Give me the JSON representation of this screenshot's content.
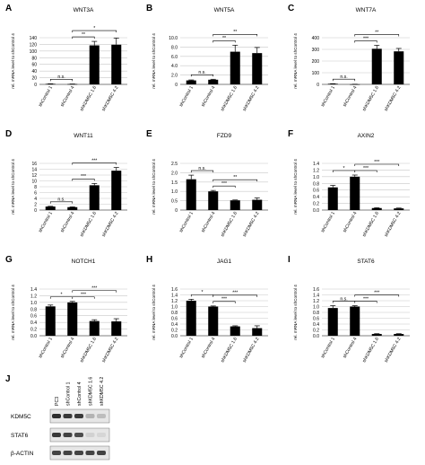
{
  "panels": [
    {
      "letter": "A",
      "title": "WNT3A",
      "ylabel": "rel. mRNA level to shControl 4",
      "ymax": 140,
      "ticks": [
        0,
        20,
        40,
        60,
        80,
        100,
        120,
        140
      ],
      "categories": [
        "shControl 1",
        "shControl 4",
        "shKDM5C 1.6",
        "shKDM5C 4.2"
      ],
      "values": [
        1.5,
        1,
        117,
        119
      ],
      "errors": [
        0.3,
        0.2,
        12,
        20
      ],
      "brackets": [
        {
          "from": 0,
          "to": 1,
          "label": "n.s."
        },
        {
          "from": 1,
          "to": 2,
          "label": "**"
        },
        {
          "from": 1,
          "to": 3,
          "label": "*"
        }
      ]
    },
    {
      "letter": "B",
      "title": "WNT5A",
      "ylabel": "rel. mRNA level to shControl 4",
      "ymax": 10,
      "ticks": [
        0,
        2,
        4,
        6,
        8,
        10
      ],
      "tick_labels": [
        "0",
        "2.0",
        "4.0",
        "6.0",
        "8.0",
        "10.0"
      ],
      "categories": [
        "shControl 1",
        "shControl 4",
        "shKDM5C 1.6",
        "shKDM5C 4.2"
      ],
      "values": [
        0.85,
        1,
        7,
        6.7
      ],
      "errors": [
        0.1,
        0.1,
        1.4,
        1.2
      ],
      "brackets": [
        {
          "from": 0,
          "to": 1,
          "label": "n.s."
        },
        {
          "from": 1,
          "to": 2,
          "label": "**"
        },
        {
          "from": 1,
          "to": 3,
          "label": "**"
        }
      ]
    },
    {
      "letter": "C",
      "title": "WNT7A",
      "ylabel": "rel. mRNA level to shControl 4",
      "ymax": 400,
      "ticks": [
        0,
        100,
        200,
        300,
        400
      ],
      "categories": [
        "shControl 1",
        "shControl 4",
        "shKDM5C 1.6",
        "shKDM5C 4.2"
      ],
      "values": [
        5,
        1,
        305,
        283
      ],
      "errors": [
        1,
        0.5,
        30,
        25
      ],
      "brackets": [
        {
          "from": 0,
          "to": 1,
          "label": "n.s."
        },
        {
          "from": 1,
          "to": 2,
          "label": "***"
        },
        {
          "from": 1,
          "to": 3,
          "label": "**"
        }
      ]
    },
    {
      "letter": "D",
      "title": "WNT11",
      "ylabel": "rel. mRNA level to shControl 4",
      "ymax": 16,
      "ticks": [
        0,
        2,
        4,
        6,
        8,
        10,
        12,
        14,
        16
      ],
      "categories": [
        "shControl 1",
        "shControl 4",
        "shKDM5C 1.6",
        "shKDM5C 4.2"
      ],
      "values": [
        1.2,
        1,
        8.5,
        13.5
      ],
      "errors": [
        0.1,
        0.1,
        0.6,
        1.1
      ],
      "brackets": [
        {
          "from": 0,
          "to": 1,
          "label": "n.s."
        },
        {
          "from": 1,
          "to": 2,
          "label": "***"
        },
        {
          "from": 1,
          "to": 3,
          "label": "***"
        }
      ]
    },
    {
      "letter": "E",
      "title": "FZD9",
      "ylabel": "rel. mRNA level to shControl 4",
      "ymax": 2.5,
      "ticks": [
        0,
        0.5,
        1,
        1.5,
        2,
        2.5
      ],
      "tick_labels": [
        "0",
        "0.5",
        "1.0",
        "1.5",
        "2.0",
        "2.5"
      ],
      "categories": [
        "shControl 1",
        "shControl 4",
        "shKDM5C 1.6",
        "shKDM5C 4.2"
      ],
      "values": [
        1.65,
        1,
        0.52,
        0.55
      ],
      "errors": [
        0.22,
        0.05,
        0.02,
        0.1
      ],
      "brackets": [
        {
          "from": 0,
          "to": 1,
          "label": "n.s."
        },
        {
          "from": 1,
          "to": 2,
          "label": "***"
        },
        {
          "from": 1,
          "to": 3,
          "label": "**"
        }
      ]
    },
    {
      "letter": "F",
      "title": "AXIN2",
      "ylabel": "rel. mRNA level to shControl 4",
      "ymax": 1.4,
      "ticks": [
        0,
        0.2,
        0.4,
        0.6,
        0.8,
        1,
        1.2,
        1.4
      ],
      "tick_labels": [
        "0.0",
        "0.2",
        "0.4",
        "0.6",
        "0.8",
        "1.0",
        "1.2",
        "1.4"
      ],
      "categories": [
        "shControl 1",
        "shControl 4",
        "shKDM5C 1.6",
        "shKDM5C 4.2"
      ],
      "values": [
        0.68,
        1,
        0.06,
        0.05
      ],
      "errors": [
        0.06,
        0.05,
        0.01,
        0.01
      ],
      "brackets": [
        {
          "from": 0,
          "to": 1,
          "label": "*"
        },
        {
          "from": 1,
          "to": 2,
          "label": "***"
        },
        {
          "from": 1,
          "to": 3,
          "label": "***"
        }
      ]
    },
    {
      "letter": "G",
      "title": "NOTCH1",
      "ylabel": "rel. mRNA level to shControl 4",
      "ymax": 1.4,
      "ticks": [
        0,
        0.2,
        0.4,
        0.6,
        0.8,
        1,
        1.2,
        1.4
      ],
      "tick_labels": [
        "0.0",
        "0.2",
        "0.4",
        "0.6",
        "0.8",
        "1.0",
        "1.2",
        "1.4"
      ],
      "categories": [
        "shControl 1",
        "shControl 4",
        "shKDM5C 1.6",
        "shKDM5C 4.2"
      ],
      "values": [
        0.88,
        1,
        0.44,
        0.43
      ],
      "errors": [
        0.04,
        0.03,
        0.04,
        0.08
      ],
      "brackets": [
        {
          "from": 0,
          "to": 1,
          "label": "*"
        },
        {
          "from": 1,
          "to": 2,
          "label": "***"
        },
        {
          "from": 1,
          "to": 3,
          "label": "***"
        }
      ]
    },
    {
      "letter": "H",
      "title": "JAG1",
      "ylabel": "rel. mRNA level to shControl 4",
      "ymax": 1.6,
      "ticks": [
        0,
        0.2,
        0.4,
        0.6,
        0.8,
        1,
        1.2,
        1.4,
        1.6
      ],
      "tick_labels": [
        "0.0",
        "0.2",
        "0.4",
        "0.6",
        "0.8",
        "1.0",
        "1.2",
        "1.4",
        "1.6"
      ],
      "categories": [
        "shControl 1",
        "shControl 4",
        "shKDM5C 1.6",
        "shKDM5C 4.2"
      ],
      "values": [
        1.2,
        1,
        0.32,
        0.26
      ],
      "errors": [
        0.05,
        0.02,
        0.02,
        0.08
      ],
      "brackets": [
        {
          "from": 0,
          "to": 1,
          "label": "*"
        },
        {
          "from": 1,
          "to": 2,
          "label": "***"
        },
        {
          "from": 1,
          "to": 3,
          "label": "***"
        }
      ]
    },
    {
      "letter": "I",
      "title": "STAT6",
      "ylabel": "rel. mRNA level to shControl 4",
      "ymax": 1.6,
      "ticks": [
        0,
        0.2,
        0.4,
        0.6,
        0.8,
        1,
        1.2,
        1.4,
        1.6
      ],
      "tick_labels": [
        "0.0",
        "0.2",
        "0.4",
        "0.6",
        "0.8",
        "1.0",
        "1.2",
        "1.4",
        "1.6"
      ],
      "categories": [
        "shControl 1",
        "shControl 4",
        "shKDM5C 1.6",
        "shKDM5C 4.2"
      ],
      "values": [
        0.95,
        1,
        0.06,
        0.06
      ],
      "errors": [
        0.08,
        0.03,
        0.01,
        0.01
      ],
      "brackets": [
        {
          "from": 0,
          "to": 1,
          "label": "n.s."
        },
        {
          "from": 1,
          "to": 2,
          "label": "***"
        },
        {
          "from": 1,
          "to": 3,
          "label": "***"
        }
      ]
    }
  ],
  "western": {
    "letter": "J",
    "lanes": [
      "PC3",
      "shControl 1",
      "shControl 4",
      "shKDM5C 1.6",
      "shKDM5C 4.2"
    ],
    "blots": [
      {
        "label": "KDM5C",
        "intensity": [
          0.9,
          0.85,
          0.85,
          0.25,
          0.2
        ]
      },
      {
        "label": "STAT6",
        "intensity": [
          0.85,
          0.8,
          0.75,
          0.1,
          0.08
        ]
      },
      {
        "label": "β-ACTIN",
        "intensity": [
          0.8,
          0.8,
          0.8,
          0.8,
          0.8
        ]
      }
    ]
  },
  "colors": {
    "bar": "#000000",
    "gridline": "#c8c8c8",
    "band": "#1a1a1a",
    "blot_bg": "#e6e6e6"
  },
  "chart_data": [
    {
      "type": "bar",
      "title": "WNT3A",
      "categories": [
        "shControl 1",
        "shControl 4",
        "shKDM5C 1.6",
        "shKDM5C 4.2"
      ],
      "values": [
        1.5,
        1,
        117,
        119
      ],
      "errors": [
        0.3,
        0.2,
        12,
        20
      ],
      "ylabel": "rel. mRNA level to shControl 4",
      "ylim": [
        0,
        140
      ],
      "grid": true
    },
    {
      "type": "bar",
      "title": "WNT5A",
      "categories": [
        "shControl 1",
        "shControl 4",
        "shKDM5C 1.6",
        "shKDM5C 4.2"
      ],
      "values": [
        0.85,
        1,
        7,
        6.7
      ],
      "errors": [
        0.1,
        0.1,
        1.4,
        1.2
      ],
      "ylabel": "rel. mRNA level to shControl 4",
      "ylim": [
        0,
        10
      ],
      "grid": true
    },
    {
      "type": "bar",
      "title": "WNT7A",
      "categories": [
        "shControl 1",
        "shControl 4",
        "shKDM5C 1.6",
        "shKDM5C 4.2"
      ],
      "values": [
        5,
        1,
        305,
        283
      ],
      "errors": [
        1,
        0.5,
        30,
        25
      ],
      "ylabel": "rel. mRNA level to shControl 4",
      "ylim": [
        0,
        400
      ],
      "grid": true
    },
    {
      "type": "bar",
      "title": "WNT11",
      "categories": [
        "shControl 1",
        "shControl 4",
        "shKDM5C 1.6",
        "shKDM5C 4.2"
      ],
      "values": [
        1.2,
        1,
        8.5,
        13.5
      ],
      "errors": [
        0.1,
        0.1,
        0.6,
        1.1
      ],
      "ylabel": "rel. mRNA level to shControl 4",
      "ylim": [
        0,
        16
      ],
      "grid": true
    },
    {
      "type": "bar",
      "title": "FZD9",
      "categories": [
        "shControl 1",
        "shControl 4",
        "shKDM5C 1.6",
        "shKDM5C 4.2"
      ],
      "values": [
        1.65,
        1,
        0.52,
        0.55
      ],
      "errors": [
        0.22,
        0.05,
        0.02,
        0.1
      ],
      "ylabel": "rel. mRNA level to shControl 4",
      "ylim": [
        0,
        2.5
      ],
      "grid": true
    },
    {
      "type": "bar",
      "title": "AXIN2",
      "categories": [
        "shControl 1",
        "shControl 4",
        "shKDM5C 1.6",
        "shKDM5C 4.2"
      ],
      "values": [
        0.68,
        1,
        0.06,
        0.05
      ],
      "errors": [
        0.06,
        0.05,
        0.01,
        0.01
      ],
      "ylabel": "rel. mRNA level to shControl 4",
      "ylim": [
        0,
        1.4
      ],
      "grid": true
    },
    {
      "type": "bar",
      "title": "NOTCH1",
      "categories": [
        "shControl 1",
        "shControl 4",
        "shKDM5C 1.6",
        "shKDM5C 4.2"
      ],
      "values": [
        0.88,
        1,
        0.44,
        0.43
      ],
      "errors": [
        0.04,
        0.03,
        0.04,
        0.08
      ],
      "ylabel": "rel. mRNA level to shControl 4",
      "ylim": [
        0,
        1.4
      ],
      "grid": true
    },
    {
      "type": "bar",
      "title": "JAG1",
      "categories": [
        "shControl 1",
        "shControl 4",
        "shKDM5C 1.6",
        "shKDM5C 4.2"
      ],
      "values": [
        1.2,
        1,
        0.32,
        0.26
      ],
      "errors": [
        0.05,
        0.02,
        0.02,
        0.08
      ],
      "ylabel": "rel. mRNA level to shControl 4",
      "ylim": [
        0,
        1.6
      ],
      "grid": true
    },
    {
      "type": "bar",
      "title": "STAT6",
      "categories": [
        "shControl 1",
        "shControl 4",
        "shKDM5C 1.6",
        "shKDM5C 4.2"
      ],
      "values": [
        0.95,
        1,
        0.06,
        0.06
      ],
      "errors": [
        0.08,
        0.03,
        0.01,
        0.01
      ],
      "ylabel": "rel. mRNA level to shControl 4",
      "ylim": [
        0,
        1.6
      ],
      "grid": true
    }
  ]
}
